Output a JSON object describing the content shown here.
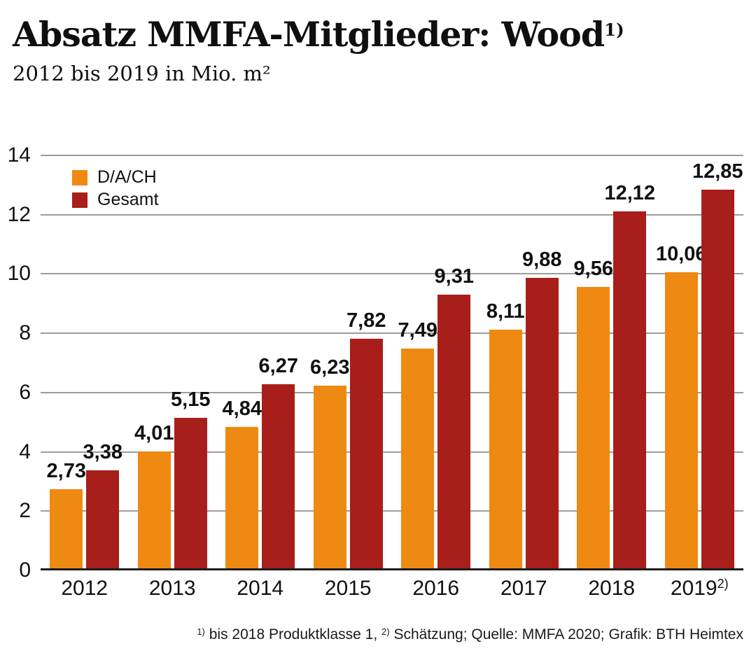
{
  "header": {
    "title": "Absatz MMFA-Mitglieder: Wood",
    "title_sup": "1)",
    "subtitle": "2012 bis 2019 in Mio. m²"
  },
  "chart_data": {
    "type": "bar",
    "title": "Absatz MMFA-Mitglieder: Wood 1)",
    "subtitle": "2012 bis 2019 in Mio. m²",
    "unit": "Mio. m²",
    "categories": [
      "2012",
      "2013",
      "2014",
      "2015",
      "2016",
      "2017",
      "2018",
      "2019"
    ],
    "category_sups": [
      "",
      "",
      "",
      "",
      "",
      "",
      "",
      "2)"
    ],
    "series": [
      {
        "name": "D/A/CH",
        "color": "#EE8912",
        "values": [
          2.73,
          4.01,
          4.84,
          6.23,
          7.49,
          8.11,
          9.56,
          10.06
        ]
      },
      {
        "name": "Gesamt",
        "color": "#A81E1A",
        "values": [
          3.38,
          5.15,
          6.27,
          7.82,
          9.31,
          9.88,
          12.12,
          12.85
        ]
      }
    ],
    "value_labels": [
      [
        "2,73",
        "4,01",
        "4,84",
        "6,23",
        "7,49",
        "8,11",
        "9,56",
        "10,06"
      ],
      [
        "3,38",
        "5,15",
        "6,27",
        "7,82",
        "9,31",
        "9,88",
        "12,12",
        "12,85"
      ]
    ],
    "xlabel": "",
    "ylabel": "",
    "ylim": [
      0,
      14
    ],
    "yticks": [
      0,
      2,
      4,
      6,
      8,
      10,
      12,
      14
    ],
    "grid": "horizontal",
    "gridline_color": "#9d9d9d",
    "axis_line_color": "#1c1c1c",
    "legend_position": "top-left-inside"
  },
  "footnote": {
    "sup1": "1)",
    "part1": " bis 2018 Produktklasse 1, ",
    "sup2": "2)",
    "part2": " Schätzung; Quelle: MMFA 2020; Grafik: BTH Heimtex"
  }
}
